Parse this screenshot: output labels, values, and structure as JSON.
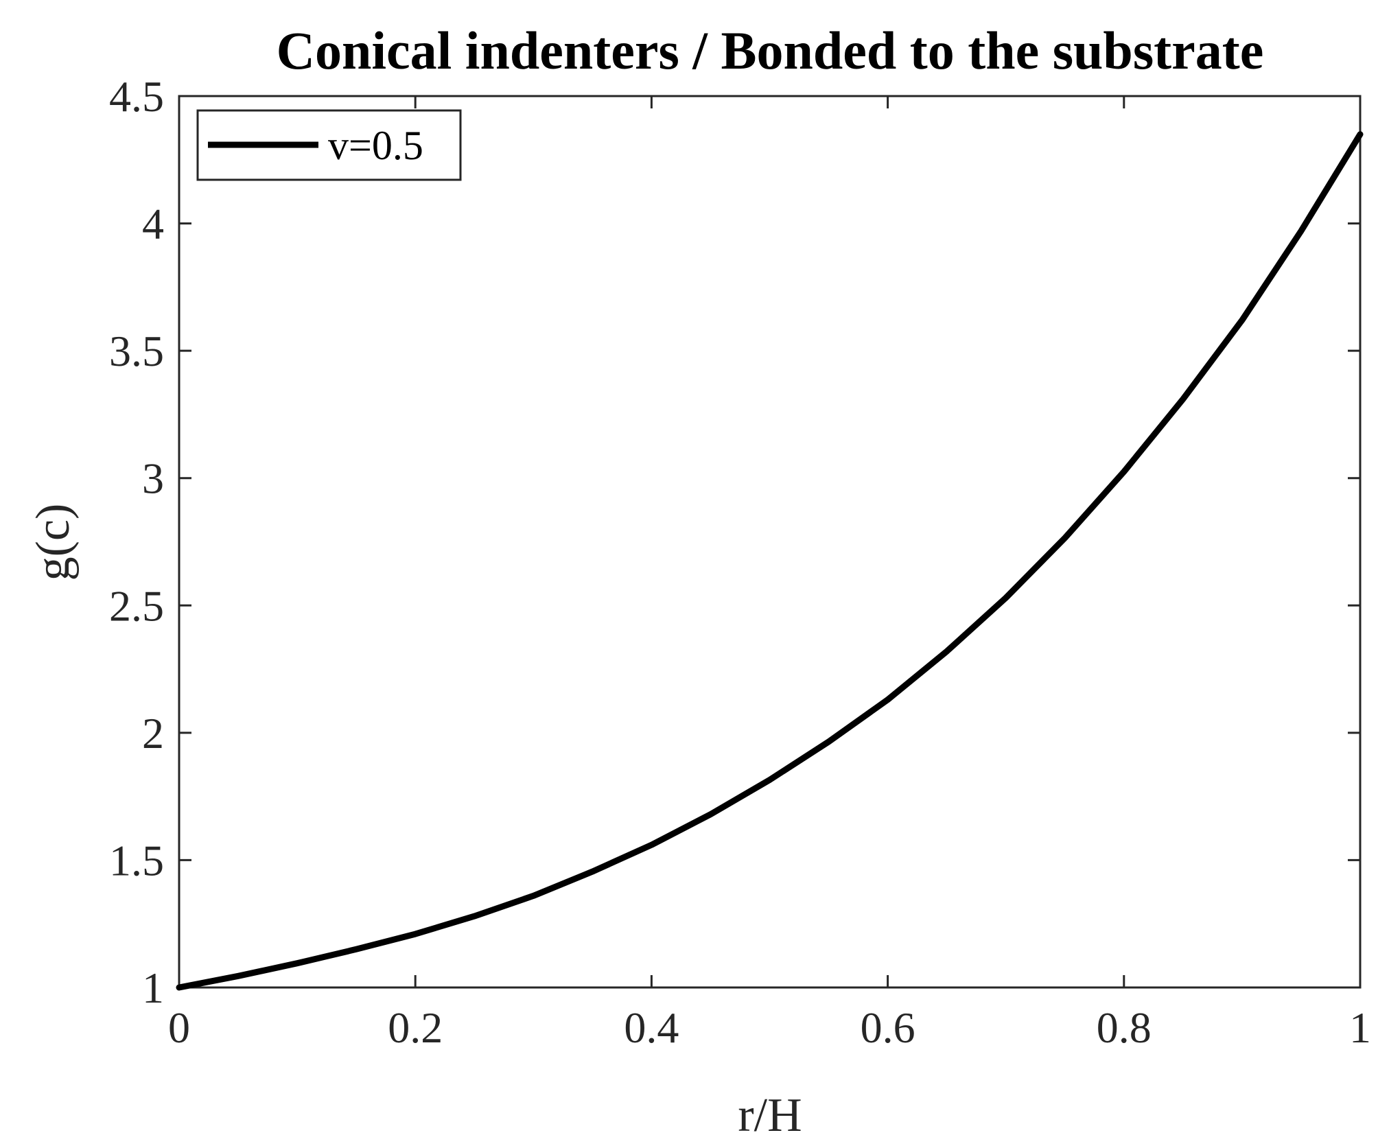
{
  "chart_data": {
    "type": "line",
    "title": "Conical indenters / Bonded to the substrate",
    "xlabel": "r/H",
    "ylabel": "g(c)",
    "xlim": [
      0,
      1
    ],
    "ylim": [
      1,
      4.5
    ],
    "xticks": [
      "0",
      "0.2",
      "0.4",
      "0.6",
      "0.8",
      "1"
    ],
    "yticks": [
      "1",
      "1.5",
      "2",
      "2.5",
      "3",
      "3.5",
      "4",
      "4.5"
    ],
    "grid": false,
    "legend_position": "top-left",
    "series": [
      {
        "name": "v=0.5",
        "color": "#000000",
        "x": [
          0,
          0.05,
          0.1,
          0.15,
          0.2,
          0.25,
          0.3,
          0.35,
          0.4,
          0.45,
          0.5,
          0.55,
          0.6,
          0.65,
          0.7,
          0.75,
          0.8,
          0.85,
          0.9,
          0.95,
          1.0
        ],
        "y": [
          1.0,
          1.045,
          1.095,
          1.15,
          1.21,
          1.28,
          1.36,
          1.455,
          1.56,
          1.68,
          1.815,
          1.965,
          2.13,
          2.32,
          2.53,
          2.765,
          3.025,
          3.31,
          3.62,
          3.97,
          4.35
        ]
      }
    ]
  }
}
